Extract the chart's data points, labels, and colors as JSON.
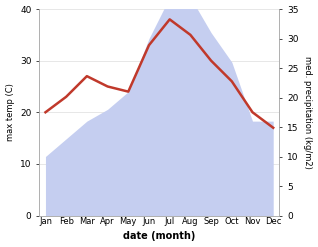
{
  "months": [
    "Jan",
    "Feb",
    "Mar",
    "Apr",
    "May",
    "Jun",
    "Jul",
    "Aug",
    "Sep",
    "Oct",
    "Nov",
    "Dec"
  ],
  "month_positions": [
    0,
    1,
    2,
    3,
    4,
    5,
    6,
    7,
    8,
    9,
    10,
    11
  ],
  "max_temp": [
    20,
    23,
    27,
    25,
    24,
    33,
    38,
    35,
    30,
    26,
    20,
    17
  ],
  "precipitation": [
    10,
    13,
    16,
    18,
    21,
    30,
    37,
    37,
    31,
    26,
    16,
    16
  ],
  "temp_ylim": [
    0,
    40
  ],
  "precip_ylim": [
    0,
    35
  ],
  "temp_color": "#c0392b",
  "precip_fill_color": "#c5cef0",
  "xlabel": "date (month)",
  "ylabel_left": "max temp (C)",
  "ylabel_right": "med. precipitation (kg/m2)",
  "bg_color": "#ffffff",
  "temp_linewidth": 1.8,
  "grid_color": "#dddddd"
}
